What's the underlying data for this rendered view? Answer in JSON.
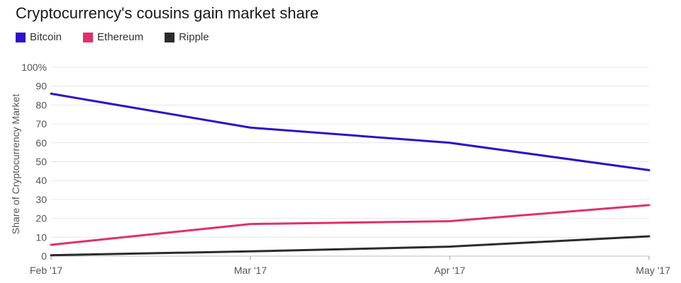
{
  "chart_data": {
    "type": "line",
    "title": "Cryptocurrency's cousins gain market share",
    "ylabel": "Share of Cryptocurrency Market",
    "xlabel": "",
    "x": [
      "Feb '17",
      "Mar '17",
      "Apr '17",
      "May '17"
    ],
    "ylim": [
      0,
      100
    ],
    "yticks": [
      "0",
      "10",
      "20",
      "30",
      "40",
      "50",
      "60",
      "70",
      "80",
      "90",
      "100%"
    ],
    "grid": true,
    "legend_position": "top-left",
    "series": [
      {
        "name": "Bitcoin",
        "color": "#2d12c8",
        "values": [
          86,
          68,
          60,
          45.5
        ]
      },
      {
        "name": "Ethereum",
        "color": "#e0306a",
        "values": [
          6,
          17,
          18.5,
          27
        ]
      },
      {
        "name": "Ripple",
        "color": "#2b2b2b",
        "values": [
          0.5,
          2.5,
          5,
          10.5
        ]
      }
    ]
  }
}
